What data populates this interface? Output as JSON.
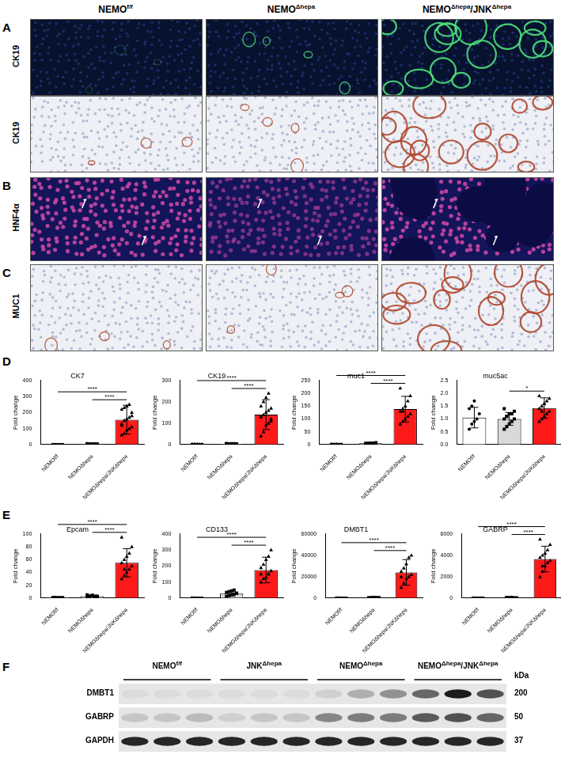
{
  "header": {
    "columns": [
      [
        {
          "text": "NEMO"
        },
        {
          "text": "f/f",
          "sup": true
        }
      ],
      [
        {
          "text": "NEMO"
        },
        {
          "text": "Δhepa",
          "sup": true
        }
      ],
      [
        {
          "text": "NEMO"
        },
        {
          "text": "Δhepa",
          "sup": true
        },
        {
          "text": "/JNK"
        },
        {
          "text": "Δhepa",
          "sup": true
        }
      ]
    ]
  },
  "panels": [
    {
      "letter": "A",
      "rows": [
        {
          "label": "CK19",
          "kind": "immunofluorescence"
        },
        {
          "label": "CK19",
          "kind": "immunohistochemistry"
        }
      ]
    },
    {
      "letter": "B",
      "rows": [
        {
          "label": "HNF4α",
          "kind": "nuclear-fluorescence"
        }
      ]
    },
    {
      "letter": "C",
      "rows": [
        {
          "label": "MUC1",
          "kind": "immunohistochemistry"
        }
      ]
    }
  ],
  "chart_panel_letters": [
    "D",
    "E"
  ],
  "chart_data": [
    {
      "type": "bar",
      "title": "CK7",
      "y_label": "Fold change",
      "categories": [
        "NEMOf/f",
        "NEMOΔhepa",
        "NEMOΔhepa/JNKΔhepa"
      ],
      "values": [
        1,
        3,
        155
      ],
      "errors": [
        0.3,
        1.2,
        90
      ],
      "points": [
        [
          1,
          1,
          1,
          1,
          1,
          1,
          1,
          1
        ],
        [
          2,
          3,
          4,
          3,
          2,
          5,
          3,
          2,
          4,
          3,
          2,
          4
        ],
        [
          60,
          70,
          90,
          100,
          110,
          130,
          150,
          160,
          170,
          200,
          220,
          230,
          240,
          250,
          180,
          120
        ]
      ],
      "colors": [
        "#ffffff",
        "#d9d9d9",
        "#ff1a1a"
      ],
      "ylim": [
        0,
        400
      ],
      "yticks": [
        0,
        100,
        200,
        300,
        400
      ],
      "grid": false,
      "significance": [
        {
          "from": 1,
          "to": 2,
          "label": "****"
        },
        {
          "from": 0,
          "to": 2,
          "label": "****"
        }
      ]
    },
    {
      "type": "bar",
      "title": "CK19",
      "y_label": "Fold change",
      "categories": [
        "NEMOf/f",
        "NEMOΔhepa",
        "NEMOΔhepa/JNKΔhepa"
      ],
      "values": [
        1,
        3,
        140
      ],
      "errors": [
        0.3,
        1,
        70
      ],
      "points": [
        [
          1,
          1,
          1,
          1,
          1,
          1,
          1,
          1
        ],
        [
          2,
          3,
          4,
          2,
          3,
          5,
          3,
          2,
          4,
          3,
          2,
          3
        ],
        [
          40,
          60,
          90,
          100,
          120,
          130,
          140,
          150,
          160,
          170,
          180,
          200,
          220,
          240,
          110,
          130
        ]
      ],
      "colors": [
        "#ffffff",
        "#d9d9d9",
        "#ff1a1a"
      ],
      "ylim": [
        0,
        300
      ],
      "yticks": [
        0,
        100,
        200,
        300
      ],
      "grid": false,
      "significance": [
        {
          "from": 1,
          "to": 2,
          "label": "****"
        },
        {
          "from": 0,
          "to": 2,
          "label": "****"
        }
      ]
    },
    {
      "type": "bar",
      "title": "muc1",
      "y_label": "Fold change",
      "categories": [
        "NEMOf/f",
        "NEMOΔhepa",
        "NEMOΔhepa/JNKΔhepa"
      ],
      "values": [
        1,
        5,
        138
      ],
      "errors": [
        0.3,
        1.5,
        50
      ],
      "points": [
        [
          1,
          1,
          1,
          1,
          1,
          1,
          1,
          1
        ],
        [
          3,
          5,
          6,
          4,
          7,
          5,
          4,
          6,
          5,
          3
        ],
        [
          80,
          90,
          100,
          110,
          120,
          130,
          140,
          150,
          170,
          190,
          220,
          130
        ]
      ],
      "colors": [
        "#ffffff",
        "#d9d9d9",
        "#ff1a1a"
      ],
      "ylim": [
        0,
        250
      ],
      "yticks": [
        0,
        50,
        100,
        150,
        200,
        250
      ],
      "grid": false,
      "significance": [
        {
          "from": 1,
          "to": 2,
          "label": "****"
        },
        {
          "from": 0,
          "to": 2,
          "label": "****"
        }
      ]
    },
    {
      "type": "bar",
      "title": "muc5ac",
      "y_label": "Fold change",
      "categories": [
        "NEMOf/f",
        "NEMOΔhepa",
        "NEMOΔhepa/JNKΔhepa"
      ],
      "values": [
        1.05,
        1.0,
        1.42
      ],
      "errors": [
        0.4,
        0.25,
        0.4
      ],
      "points": [
        [
          0.6,
          0.8,
          0.9,
          1.0,
          1.2,
          1.4,
          1.5,
          1.7
        ],
        [
          0.6,
          0.7,
          0.8,
          0.9,
          1.0,
          1.0,
          1.1,
          1.2,
          1.2,
          1.3,
          1.4,
          1.1
        ],
        [
          0.9,
          1.0,
          1.1,
          1.2,
          1.3,
          1.4,
          1.5,
          1.6,
          1.7,
          1.8,
          1.9,
          1.3,
          1.6
        ]
      ],
      "colors": [
        "#ffffff",
        "#d9d9d9",
        "#ff1a1a"
      ],
      "ylim": [
        0,
        2.5
      ],
      "yticks": [
        {
          "value": 0,
          "label": "0.0"
        },
        0.5,
        {
          "value": 1,
          "label": "1.0"
        },
        1.5,
        {
          "value": 2,
          "label": "2.0"
        },
        2.5
      ],
      "grid": false,
      "significance": [
        {
          "from": 1,
          "to": 2,
          "label": "*"
        }
      ]
    },
    {
      "type": "bar",
      "title": "Epcam",
      "y_label": "Fold change",
      "categories": [
        "NEMOf/f",
        "NEMOΔhepa",
        "NEMOΔhepa/JNKΔhepa"
      ],
      "values": [
        1,
        3,
        55
      ],
      "errors": [
        0.3,
        1,
        22
      ],
      "points": [
        [
          1,
          1,
          1,
          1,
          1,
          1,
          1
        ],
        [
          2,
          3,
          4,
          3,
          2,
          5,
          3,
          4,
          2,
          3
        ],
        [
          30,
          35,
          40,
          45,
          50,
          55,
          60,
          65,
          70,
          80,
          95,
          45
        ]
      ],
      "colors": [
        "#ffffff",
        "#d9d9d9",
        "#ff1a1a"
      ],
      "ylim": [
        0,
        100
      ],
      "yticks": [
        0,
        20,
        40,
        60,
        80,
        100
      ],
      "grid": false,
      "significance": [
        {
          "from": 1,
          "to": 2,
          "label": "****"
        },
        {
          "from": 0,
          "to": 2,
          "label": "****"
        }
      ]
    },
    {
      "type": "bar",
      "title": "CD133",
      "y_label": "Fold change",
      "categories": [
        "NEMOf/f",
        "NEMOΔhepa",
        "NEMOΔhepa/JNKΔhepa"
      ],
      "values": [
        1,
        28,
        175
      ],
      "errors": [
        0.5,
        15,
        80
      ],
      "points": [
        [
          1,
          1,
          1,
          1,
          1,
          1,
          1
        ],
        [
          10,
          15,
          20,
          25,
          30,
          35,
          40,
          45,
          50,
          30
        ],
        [
          100,
          120,
          130,
          150,
          170,
          190,
          210,
          240,
          260,
          300,
          150
        ]
      ],
      "colors": [
        "#ffffff",
        "#d9d9d9",
        "#ff1a1a"
      ],
      "ylim": [
        0,
        400
      ],
      "yticks": [
        0,
        100,
        200,
        300,
        400
      ],
      "grid": false,
      "significance": [
        {
          "from": 1,
          "to": 2,
          "label": "****"
        },
        {
          "from": 0,
          "to": 2,
          "label": "****"
        }
      ]
    },
    {
      "type": "bar",
      "title": "DMBT1",
      "y_label": "Fold change",
      "categories": [
        "NEMOf/f",
        "NEMOΔhepa",
        "NEMOΔhepa/JNKΔhepa"
      ],
      "values": [
        1,
        300,
        24000
      ],
      "errors": [
        0.5,
        150,
        12000
      ],
      "points": [
        [
          1,
          1,
          1,
          1,
          1,
          1,
          1
        ],
        [
          100,
          200,
          300,
          400,
          500,
          300,
          200,
          400
        ],
        [
          10000,
          14000,
          18000,
          20000,
          22000,
          25000,
          28000,
          32000,
          38000,
          40000,
          20000
        ]
      ],
      "colors": [
        "#ffffff",
        "#d9d9d9",
        "#ff1a1a"
      ],
      "ylim": [
        0,
        60000
      ],
      "yticks": [
        0,
        20000,
        40000,
        60000
      ],
      "grid": false,
      "significance": [
        {
          "from": 1,
          "to": 2,
          "label": "****"
        },
        {
          "from": 0,
          "to": 2,
          "label": "****"
        }
      ]
    },
    {
      "type": "bar",
      "title": "GABRP",
      "y_label": "Fold change",
      "categories": [
        "NEMOf/f",
        "NEMOΔhepa",
        "NEMOΔhepa/JNKΔhepa"
      ],
      "values": [
        1,
        30,
        3650
      ],
      "errors": [
        0.5,
        10,
        1200
      ],
      "points": [
        [
          1,
          1,
          1,
          1,
          1,
          1,
          1
        ],
        [
          20,
          30,
          40,
          30,
          20,
          40,
          30,
          40
        ],
        [
          2000,
          2500,
          3000,
          3300,
          3500,
          3800,
          4000,
          4200,
          4500,
          5000,
          5500,
          3000
        ]
      ],
      "colors": [
        "#ffffff",
        "#d9d9d9",
        "#ff1a1a"
      ],
      "ylim": [
        0,
        6000
      ],
      "yticks": [
        0,
        2000,
        4000,
        6000
      ],
      "grid": false,
      "significance": [
        {
          "from": 1,
          "to": 2,
          "label": "****"
        },
        {
          "from": 0,
          "to": 2,
          "label": "****"
        }
      ]
    }
  ],
  "blot": {
    "letter": "F",
    "unit": "kDa",
    "groups": [
      {
        "label": [
          {
            "text": "NEMO"
          },
          {
            "text": "f/f",
            "sup": true
          }
        ],
        "lanes": 3
      },
      {
        "label": [
          {
            "text": "JNK"
          },
          {
            "text": "Δhepa",
            "sup": true
          }
        ],
        "lanes": 3
      },
      {
        "label": [
          {
            "text": "NEMO"
          },
          {
            "text": "Δhepa",
            "sup": true
          }
        ],
        "lanes": 3
      },
      {
        "label": [
          {
            "text": "NEMO"
          },
          {
            "text": "Δhepa",
            "sup": true
          },
          {
            "text": "/"
          },
          {
            "text": "JNK"
          },
          {
            "text": "Δhepa",
            "sup": true
          }
        ],
        "lanes": 3
      }
    ],
    "rows": [
      {
        "label": "DMBT1",
        "kda": 200,
        "intensities": [
          0.05,
          0.05,
          0.05,
          0.05,
          0.05,
          0.05,
          0.1,
          0.25,
          0.4,
          0.6,
          0.95,
          0.7
        ]
      },
      {
        "label": "GABRP",
        "kda": 50,
        "intensities": [
          0.15,
          0.15,
          0.2,
          0.1,
          0.15,
          0.15,
          0.45,
          0.5,
          0.5,
          0.65,
          0.7,
          0.6
        ]
      },
      {
        "label": "GAPDH",
        "kda": 37,
        "intensities": [
          0.9,
          0.9,
          0.9,
          0.9,
          0.9,
          0.9,
          0.9,
          0.9,
          0.9,
          0.9,
          0.9,
          0.9
        ]
      }
    ]
  }
}
